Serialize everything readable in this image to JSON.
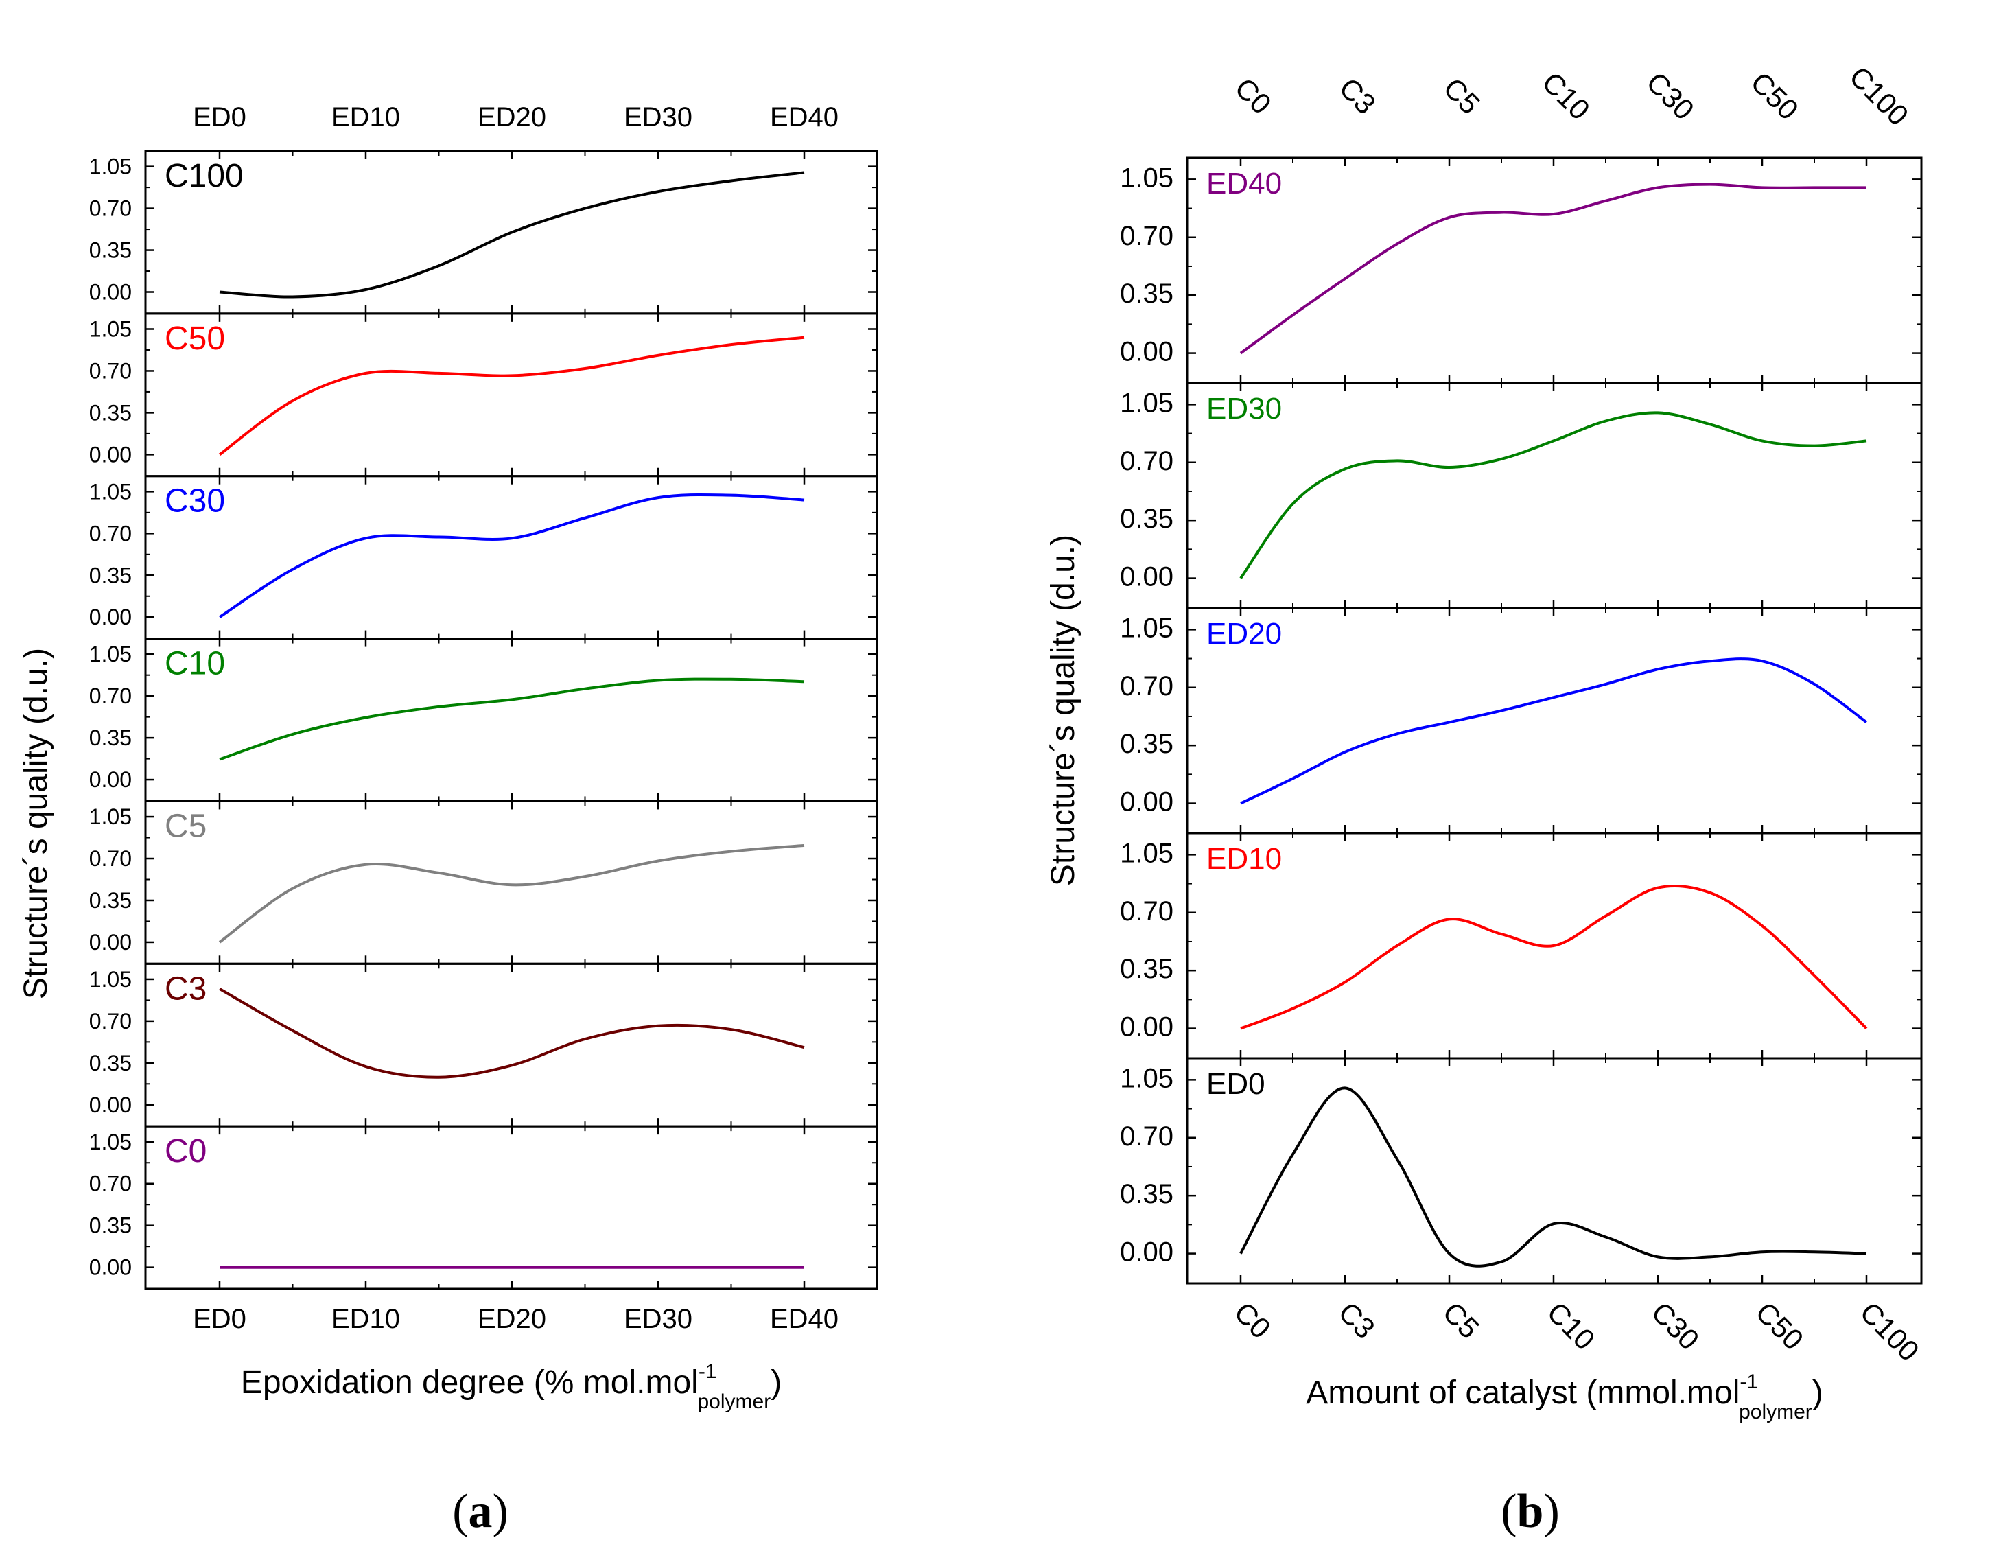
{
  "chart_data": [
    {
      "type": "line",
      "panel_label": "(a)",
      "panel_letter": "a",
      "ylabel": "Structure´s quality (d.u.)",
      "xlabel": "Epoxidation degree (% mol.mol",
      "xlabel_sup": "-1",
      "xlabel_sub": "polymer",
      "xlabel_end": ")",
      "categories": [
        "ED0",
        "ED10",
        "ED20",
        "ED30",
        "ED40"
      ],
      "x": [
        0,
        10,
        20,
        30,
        40
      ],
      "yticks": [
        "0.00",
        "0.35",
        "0.70",
        "1.05"
      ],
      "ylim": [
        -0.18,
        1.18
      ],
      "series": [
        {
          "name": "C100",
          "color": "#000000",
          "x": [
            0,
            5,
            10,
            15,
            20,
            25,
            30,
            35,
            40
          ],
          "values": [
            0.0,
            -0.04,
            0.02,
            0.22,
            0.5,
            0.7,
            0.84,
            0.93,
            1.0
          ]
        },
        {
          "name": "C50",
          "color": "#ff0000",
          "x": [
            0,
            5,
            10,
            15,
            20,
            25,
            30,
            35,
            40
          ],
          "values": [
            0.0,
            0.45,
            0.68,
            0.68,
            0.66,
            0.72,
            0.83,
            0.92,
            0.98
          ]
        },
        {
          "name": "C30",
          "color": "#0000ff",
          "x": [
            0,
            5,
            10,
            15,
            20,
            25,
            30,
            35,
            40
          ],
          "values": [
            0.0,
            0.4,
            0.66,
            0.67,
            0.66,
            0.83,
            1.0,
            1.02,
            0.98
          ]
        },
        {
          "name": "C10",
          "color": "#008000",
          "x": [
            0,
            5,
            10,
            15,
            20,
            25,
            30,
            35,
            40
          ],
          "values": [
            0.17,
            0.38,
            0.52,
            0.61,
            0.67,
            0.76,
            0.83,
            0.84,
            0.82
          ]
        },
        {
          "name": "C5",
          "color": "#808080",
          "x": [
            0,
            5,
            10,
            15,
            20,
            25,
            30,
            35,
            40
          ],
          "values": [
            0.0,
            0.45,
            0.65,
            0.58,
            0.48,
            0.55,
            0.68,
            0.76,
            0.81
          ]
        },
        {
          "name": "C3",
          "color": "#6b0000",
          "x": [
            0,
            5,
            10,
            15,
            20,
            25,
            30,
            35,
            40
          ],
          "values": [
            0.97,
            0.62,
            0.32,
            0.23,
            0.33,
            0.55,
            0.66,
            0.63,
            0.48
          ]
        },
        {
          "name": "C0",
          "color": "#800080",
          "x": [
            0,
            5,
            10,
            15,
            20,
            25,
            30,
            35,
            40
          ],
          "values": [
            0.0,
            0.0,
            0.0,
            0.0,
            0.0,
            0.0,
            0.0,
            0.0,
            0.0
          ]
        }
      ]
    },
    {
      "type": "line",
      "panel_label": "(b)",
      "panel_letter": "b",
      "ylabel": "Structure´s quality (d.u.)",
      "xlabel": "Amount of catalyst (mmol.mol",
      "xlabel_sup": "-1",
      "xlabel_sub": "polymer",
      "xlabel_end": ")",
      "categories": [
        "C0",
        "C3",
        "C5",
        "C10",
        "C30",
        "C50",
        "C100"
      ],
      "x": [
        0,
        1,
        2,
        3,
        4,
        5,
        6
      ],
      "yticks": [
        "0.00",
        "0.35",
        "0.70",
        "1.05"
      ],
      "ylim": [
        -0.18,
        1.18
      ],
      "series": [
        {
          "name": "ED40",
          "color": "#800080",
          "x": [
            0,
            0.5,
            1,
            1.5,
            2,
            2.5,
            3,
            3.5,
            4,
            4.5,
            5,
            5.5,
            6
          ],
          "values": [
            0.0,
            0.23,
            0.45,
            0.66,
            0.82,
            0.85,
            0.84,
            0.92,
            1.0,
            1.02,
            1.0,
            1.0,
            1.0
          ]
        },
        {
          "name": "ED30",
          "color": "#008000",
          "x": [
            0,
            0.5,
            1,
            1.5,
            2,
            2.5,
            3,
            3.5,
            4,
            4.5,
            5,
            5.5,
            6
          ],
          "values": [
            0.0,
            0.45,
            0.66,
            0.71,
            0.67,
            0.72,
            0.83,
            0.95,
            1.0,
            0.93,
            0.83,
            0.8,
            0.83
          ]
        },
        {
          "name": "ED20",
          "color": "#0000ff",
          "x": [
            0,
            0.5,
            1,
            1.5,
            2,
            2.5,
            3,
            3.5,
            4,
            4.5,
            5,
            5.5,
            6
          ],
          "values": [
            0.0,
            0.15,
            0.31,
            0.42,
            0.49,
            0.56,
            0.64,
            0.72,
            0.81,
            0.86,
            0.86,
            0.72,
            0.49
          ]
        },
        {
          "name": "ED10",
          "color": "#ff0000",
          "x": [
            0,
            0.5,
            1,
            1.5,
            2,
            2.5,
            3,
            3.5,
            4,
            4.5,
            5,
            5.5,
            6
          ],
          "values": [
            0.0,
            0.12,
            0.28,
            0.5,
            0.66,
            0.57,
            0.5,
            0.68,
            0.85,
            0.82,
            0.62,
            0.32,
            0.0
          ]
        },
        {
          "name": "ED0",
          "color": "#000000",
          "x": [
            0,
            0.5,
            1,
            1.5,
            2,
            2.5,
            3,
            3.5,
            4,
            4.5,
            5,
            5.5,
            6
          ],
          "values": [
            0.0,
            0.6,
            1.0,
            0.57,
            0.0,
            -0.05,
            0.18,
            0.1,
            -0.02,
            -0.02,
            0.01,
            0.01,
            0.0
          ]
        }
      ]
    }
  ]
}
